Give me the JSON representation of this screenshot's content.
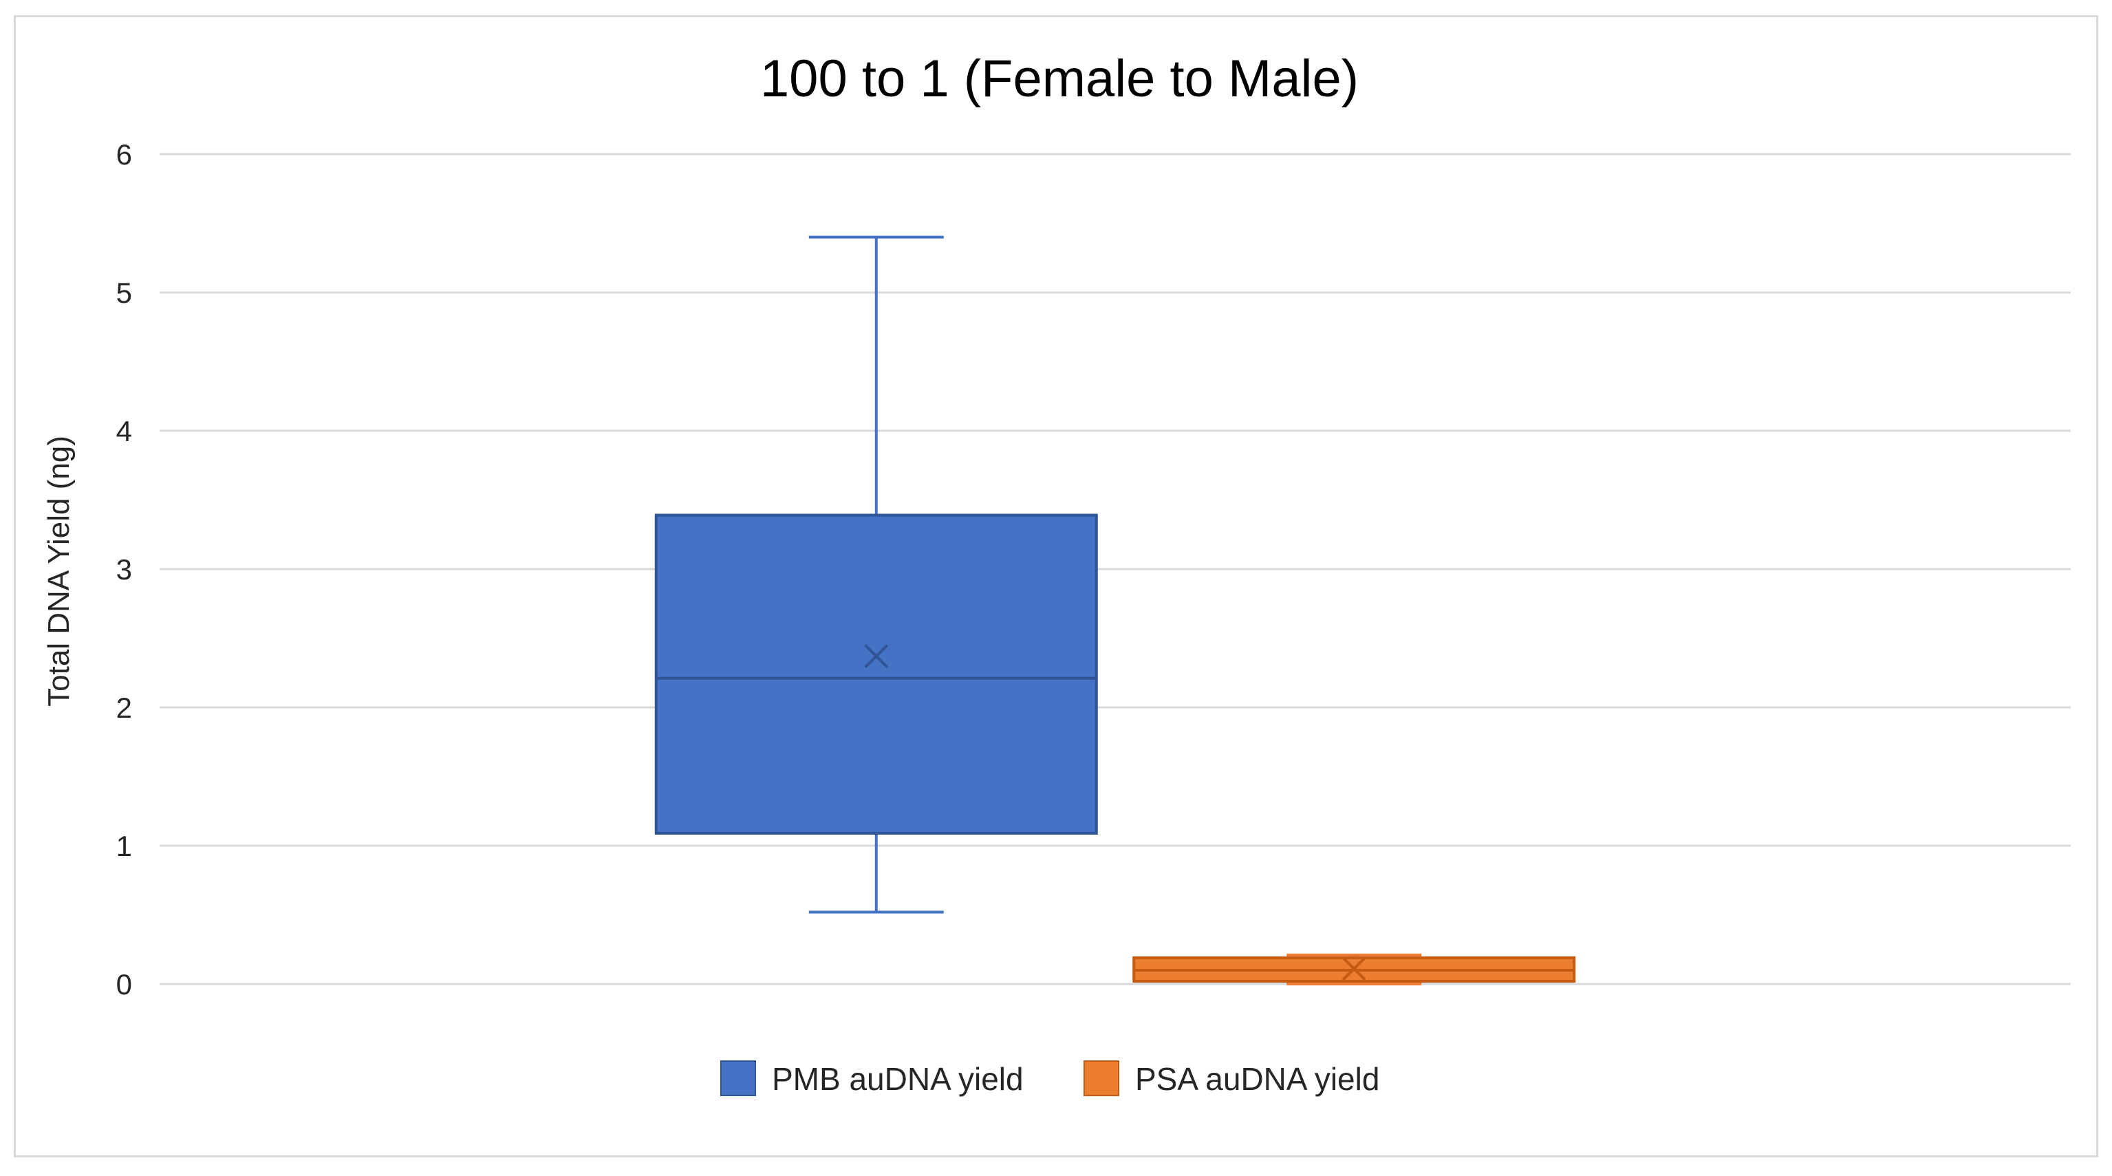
{
  "chart_data": {
    "type": "box",
    "title": "100 to 1 (Female to Male)",
    "xlabel": "",
    "ylabel": "Total DNA Yield (ng)",
    "ylim": [
      0,
      6
    ],
    "yticks": [
      "0",
      "1",
      "2",
      "3",
      "4",
      "5",
      "6"
    ],
    "grid": true,
    "legend_position": "bottom",
    "series": [
      {
        "name": "PMB auDNA yield",
        "color": "#4472C4",
        "whisker_low": 0.52,
        "q1": 1.09,
        "median": 2.21,
        "q3": 3.39,
        "whisker_high": 5.4,
        "mean": 2.37
      },
      {
        "name": "PSA auDNA yield",
        "color": "#ED7D31",
        "whisker_low": 0.0,
        "q1": 0.02,
        "median": 0.1,
        "q3": 0.19,
        "whisker_high": 0.21,
        "mean": 0.11
      }
    ]
  }
}
